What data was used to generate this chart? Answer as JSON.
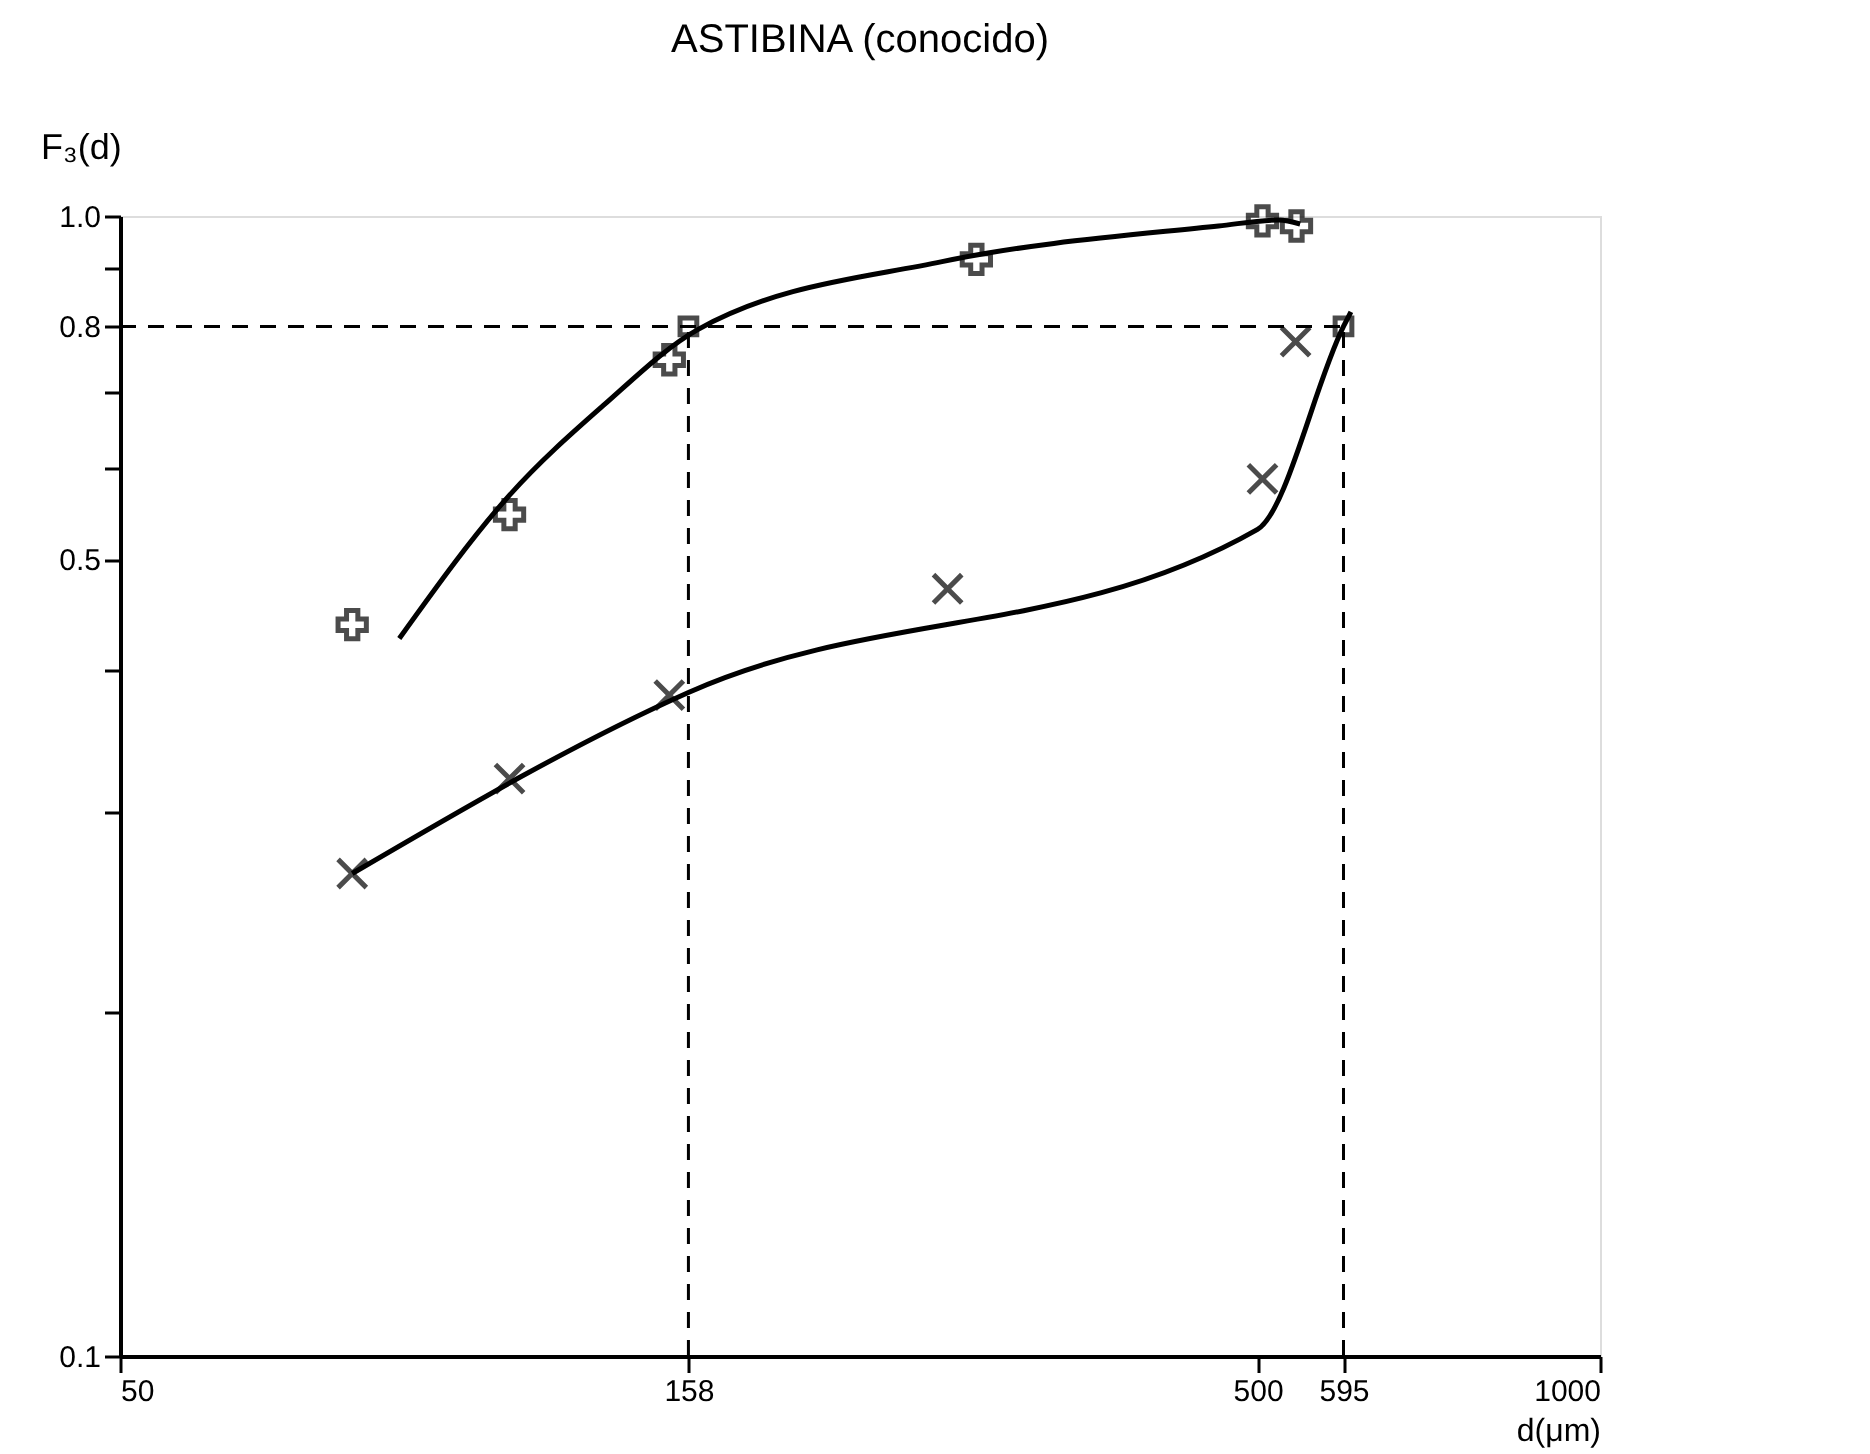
{
  "chart_data": {
    "type": "scatter",
    "title": "ASTIBINA (conocido)",
    "xlabel": "d(μm)",
    "ylabel": "F₃(d)",
    "log": "xy",
    "xlim": [
      50,
      1000
    ],
    "ylim": [
      0.1,
      1.0
    ],
    "xticks": [
      50,
      158,
      500,
      595,
      1000
    ],
    "yticks": [
      0.1,
      {
        "value": 0.2,
        "label": null
      },
      {
        "value": 0.3,
        "label": null
      },
      {
        "value": 0.4,
        "label": null
      },
      0.5,
      {
        "value": 0.6,
        "label": null
      },
      {
        "value": 0.7,
        "label": null
      },
      0.8,
      {
        "value": 0.9,
        "label": null
      },
      {
        "value": 1.0,
        "label": "1.0"
      }
    ],
    "grid": false,
    "series": [
      {
        "type": "scatter",
        "marker": "cross",
        "color": "#000000",
        "x": [
          80,
          110,
          152,
          283,
          505,
          541
        ],
        "values": [
          0.438,
          0.547,
          0.748,
          0.916,
          0.99,
          0.98
        ]
      },
      {
        "type": "scatter",
        "marker": "x",
        "color": "#000000",
        "x": [
          80,
          110,
          152,
          267,
          505,
          540
        ],
        "values": [
          0.265,
          0.321,
          0.38,
          0.471,
          0.588,
          0.776
        ]
      },
      {
        "type": "line",
        "marker": "none",
        "line_style": "solid",
        "color": "#000000",
        "x": [
          88,
          110,
          133,
          161,
          264,
          462,
          522,
          545
        ],
        "values": [
          0.426,
          0.569,
          0.682,
          0.795,
          0.912,
          0.98,
          0.992,
          0.984
        ]
      },
      {
        "type": "line",
        "marker": "none",
        "line_style": "solid",
        "color": "#000000",
        "x": [
          80,
          158,
          500,
          595,
          604
        ],
        "values": [
          0.265,
          0.382,
          0.531,
          0.8,
          0.824
        ]
      },
      {
        "type": "scatter",
        "marker": "square",
        "color": "#000000",
        "x": [
          158,
          595
        ],
        "values": [
          0.8,
          0.8
        ]
      }
    ],
    "ref_lines": [
      {
        "axis": "y",
        "value": 0.8,
        "line_style": "dashed",
        "color": "#000000"
      },
      {
        "axis": "x",
        "value": 158,
        "line_style": "dashed",
        "color": "#000000"
      },
      {
        "axis": "x",
        "value": 595,
        "line_style": "dashed",
        "color": "#000000"
      }
    ]
  }
}
